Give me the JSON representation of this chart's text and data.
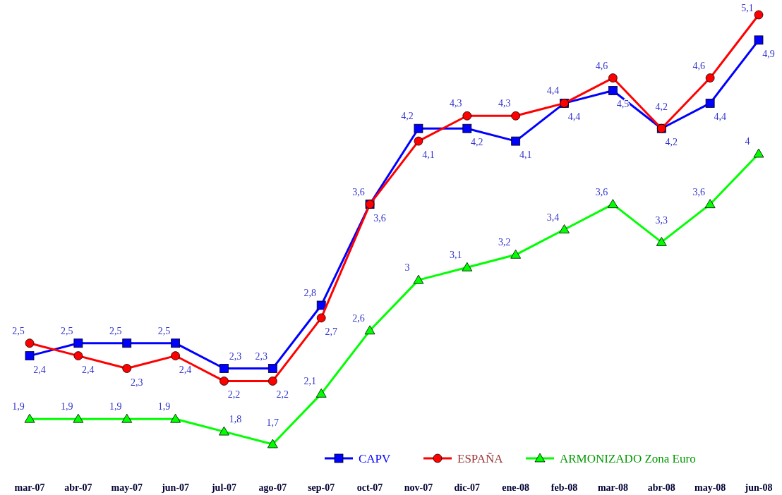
{
  "chart_data": {
    "type": "line",
    "categories": [
      "mar-07",
      "abr-07",
      "may-07",
      "jun-07",
      "jul-07",
      "ago-07",
      "sep-07",
      "oct-07",
      "nov-07",
      "dic-07",
      "ene-08",
      "feb-08",
      "mar-08",
      "abr-08",
      "may-08",
      "jun-08"
    ],
    "series": [
      {
        "name": "CAPV",
        "color": "#0000ff",
        "marker": "square",
        "values": [
          2.4,
          2.5,
          2.5,
          2.5,
          2.3,
          2.3,
          2.8,
          3.6,
          4.2,
          4.2,
          4.1,
          4.4,
          4.5,
          4.2,
          4.4,
          4.9
        ],
        "value_labels": [
          "2,4",
          "2,5",
          "2,5",
          "2,5",
          "2,3",
          "2,3",
          "2,8",
          "3,6",
          "4,2",
          "4,2",
          "4,1",
          "4,4",
          "4,5",
          "4,2",
          "4,4",
          "4,9"
        ]
      },
      {
        "name": "ESPAÑA",
        "color": "#ff0000",
        "marker": "circle",
        "values": [
          2.5,
          2.4,
          2.3,
          2.4,
          2.2,
          2.2,
          2.7,
          3.6,
          4.1,
          4.3,
          4.3,
          4.4,
          4.6,
          4.2,
          4.6,
          5.1
        ],
        "value_labels": [
          "2,5",
          "2,4",
          "2,3",
          "2,4",
          "2,2",
          "2,2",
          "2,7",
          "3,6",
          "4,1",
          "4,3",
          "4,3",
          "4,4",
          "4,6",
          "4,2",
          "4,6",
          "5,1"
        ]
      },
      {
        "name": "ARMONIZADO Zona Euro",
        "color": "#00ff00",
        "marker": "triangle",
        "values": [
          1.9,
          1.9,
          1.9,
          1.9,
          1.8,
          1.7,
          2.1,
          2.6,
          3.0,
          3.1,
          3.2,
          3.4,
          3.6,
          3.3,
          3.6,
          4.0
        ],
        "value_labels": [
          "1,9",
          "1,9",
          "1,9",
          "1,9",
          "1,8",
          "1,7",
          "2,1",
          "2,6",
          "3",
          "3,1",
          "3,2",
          "3,4",
          "3,6",
          "3,3",
          "3,6",
          "4"
        ]
      }
    ],
    "legend": "bottom right",
    "grid": false
  }
}
